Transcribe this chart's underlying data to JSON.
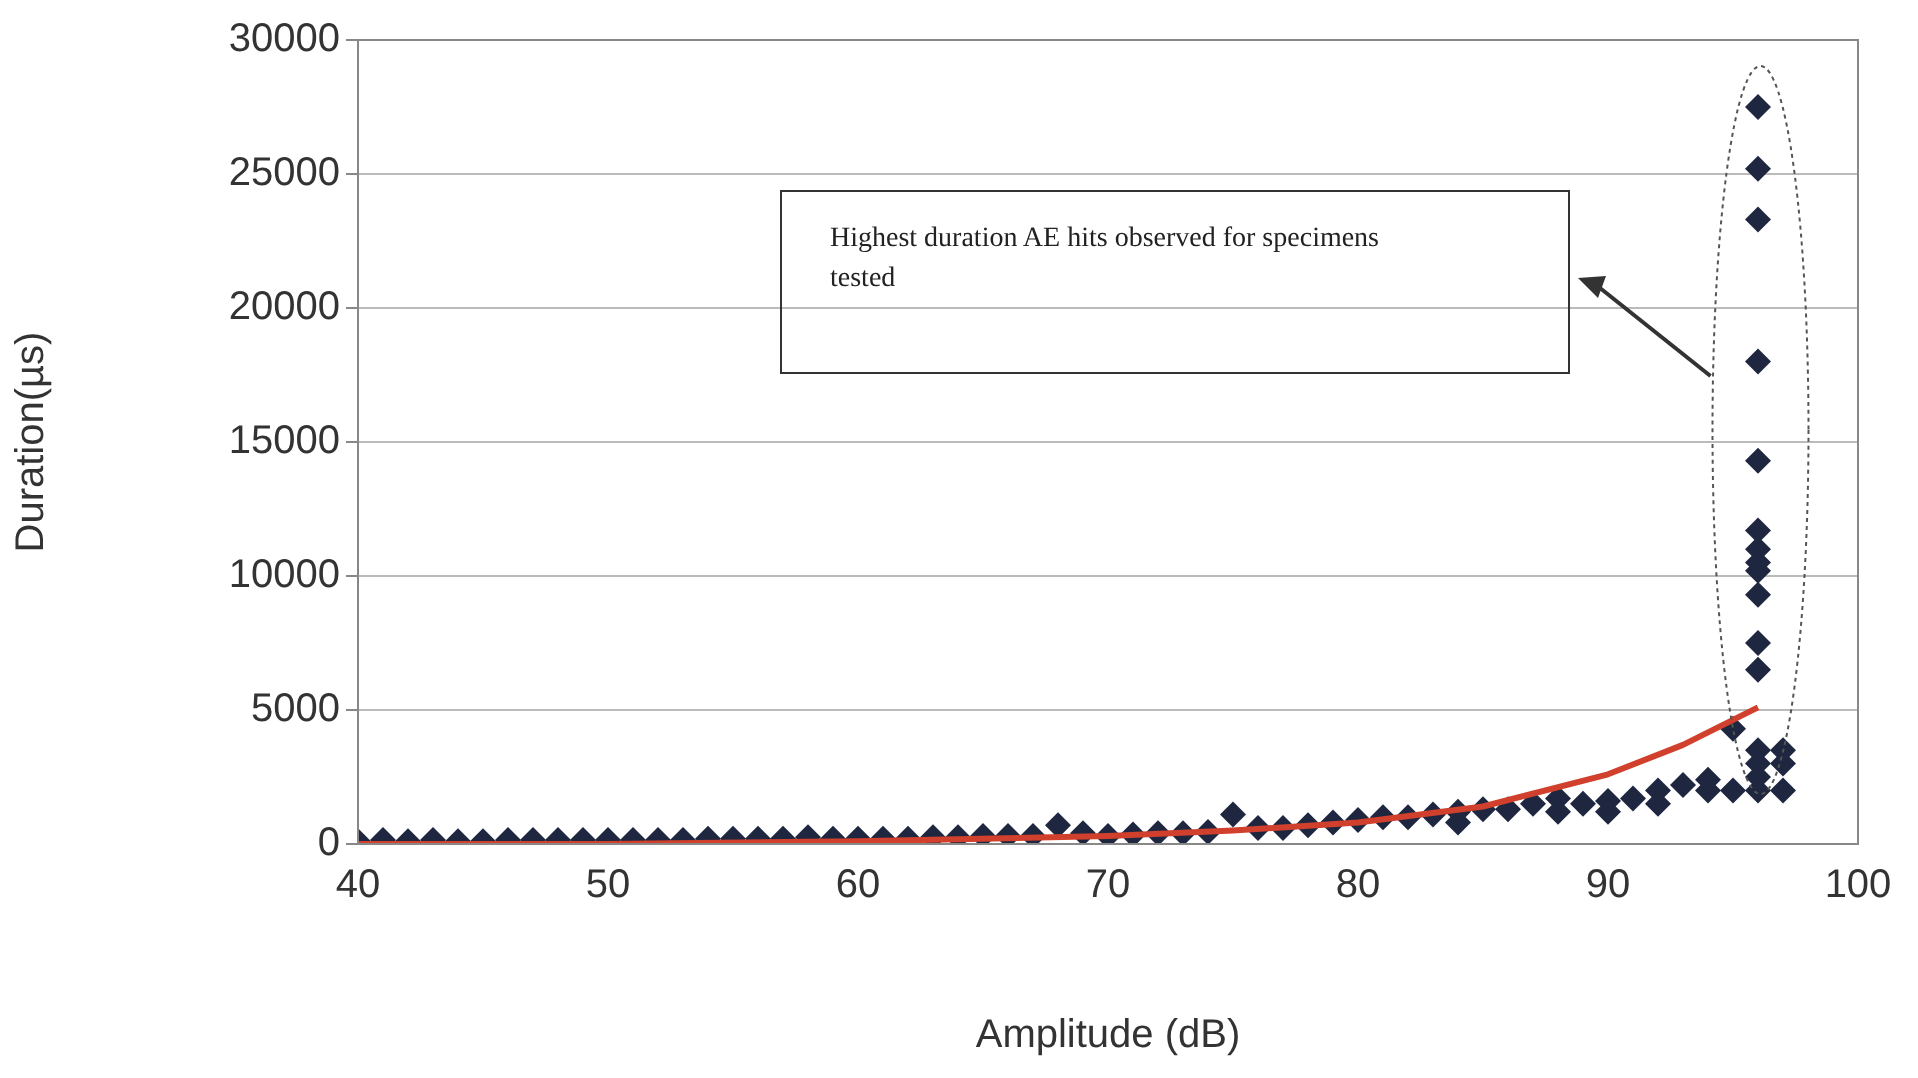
{
  "chart_data": {
    "type": "scatter",
    "xlabel": "Amplitude (dB)",
    "ylabel": "Duration(µs)",
    "xlim": [
      40,
      100
    ],
    "xticks": [
      40,
      50,
      60,
      70,
      80,
      90,
      100
    ],
    "ylim": [
      0,
      30000
    ],
    "yticks": [
      0,
      5000,
      10000,
      15000,
      20000,
      25000,
      30000
    ],
    "grid": "y",
    "legend": false,
    "marker": "diamond",
    "annotations": [
      "Highest duration AE hits observed for specimens tested"
    ],
    "series": [
      {
        "color": "#1f2740",
        "x": [
          40,
          41,
          42,
          43,
          44,
          45,
          46,
          47,
          48,
          49,
          50,
          51,
          52,
          53,
          54,
          55,
          56,
          57,
          58,
          59,
          60,
          61,
          62,
          63,
          64,
          65,
          66,
          67,
          68,
          69,
          70,
          71,
          72,
          73,
          74,
          75,
          76,
          77,
          78,
          79,
          80,
          81,
          82,
          83,
          84,
          85,
          86,
          87,
          88,
          89,
          90,
          91,
          92,
          93,
          94,
          95,
          96,
          96,
          96,
          96,
          96,
          96,
          96,
          96,
          96,
          96,
          96,
          96,
          96,
          96,
          96,
          96,
          97,
          84,
          88,
          90,
          92,
          94,
          95,
          97,
          97
        ],
        "values": [
          100,
          150,
          100,
          150,
          100,
          100,
          150,
          150,
          150,
          150,
          150,
          150,
          150,
          150,
          200,
          200,
          200,
          200,
          250,
          200,
          200,
          200,
          200,
          250,
          250,
          300,
          300,
          300,
          700,
          400,
          300,
          350,
          400,
          400,
          450,
          1100,
          600,
          600,
          700,
          800,
          900,
          1000,
          1000,
          1100,
          1200,
          1300,
          1300,
          1500,
          1700,
          1500,
          1600,
          1700,
          2000,
          2200,
          2400,
          4300,
          27500,
          25200,
          23300,
          18000,
          14300,
          11700,
          11000,
          10500,
          10200,
          9300,
          7500,
          6500,
          3500,
          3000,
          2500,
          2000,
          3500,
          800,
          1200,
          1200,
          1500,
          2000,
          2000,
          2000,
          3000
        ]
      },
      {
        "type": "line",
        "color": "#d0402c",
        "marker": "none",
        "x": [
          40,
          50,
          60,
          70,
          75,
          80,
          85,
          90,
          93,
          96
        ],
        "values": [
          0,
          0,
          100,
          300,
          500,
          800,
          1400,
          2600,
          3700,
          5100
        ]
      }
    ]
  }
}
